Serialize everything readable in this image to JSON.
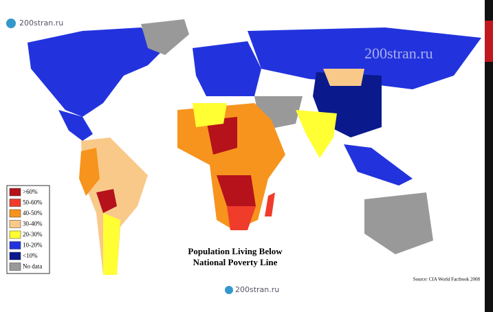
{
  "logo": "200stran.ru",
  "watermark": "200stran.ru",
  "title": [
    "Population Living Below",
    "National Poverty Line"
  ],
  "legend": [
    {
      "label": ">60%",
      "color": "#b5121b"
    },
    {
      "label": "50-60%",
      "color": "#f03c2a"
    },
    {
      "label": "40-50%",
      "color": "#f7941d"
    },
    {
      "label": "30-40%",
      "color": "#f9c98a"
    },
    {
      "label": "20-30%",
      "color": "#ffff33"
    },
    {
      "label": "10-20%",
      "color": "#2233dd"
    },
    {
      "label": "<10%",
      "color": "#0a1a8c"
    },
    {
      "label": "No data",
      "color": "#999999"
    }
  ],
  "source": "Source: CIA World Factbook 2008",
  "footer_logo": "200stran.ru"
}
